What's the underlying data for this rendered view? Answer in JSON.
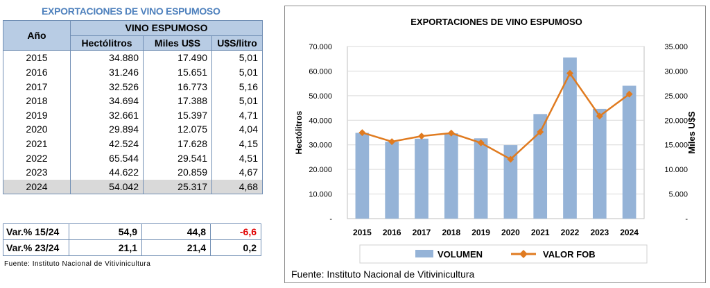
{
  "table": {
    "title": "EXPORTACIONES DE VINO ESPUMOSO",
    "header_year": "Año",
    "header_group": "VINO ESPUMOSO",
    "columns": [
      "Hectólitros",
      "Miles U$S",
      "U$S/litro"
    ],
    "rows": [
      {
        "year": "2015",
        "hl": "34.880",
        "mu": "17.490",
        "ul": "5,01"
      },
      {
        "year": "2016",
        "hl": "31.246",
        "mu": "15.651",
        "ul": "5,01"
      },
      {
        "year": "2017",
        "hl": "32.526",
        "mu": "16.773",
        "ul": "5,16"
      },
      {
        "year": "2018",
        "hl": "34.694",
        "mu": "17.388",
        "ul": "5,01"
      },
      {
        "year": "2019",
        "hl": "32.661",
        "mu": "15.397",
        "ul": "4,71"
      },
      {
        "year": "2020",
        "hl": "29.894",
        "mu": "12.075",
        "ul": "4,04"
      },
      {
        "year": "2021",
        "hl": "42.524",
        "mu": "17.628",
        "ul": "4,15"
      },
      {
        "year": "2022",
        "hl": "65.544",
        "mu": "29.541",
        "ul": "4,51"
      },
      {
        "year": "2023",
        "hl": "44.622",
        "mu": "20.859",
        "ul": "4,67"
      },
      {
        "year": "2024",
        "hl": "54.042",
        "mu": "25.317",
        "ul": "4,68"
      }
    ],
    "variations": [
      {
        "label": "Var.% 15/24",
        "hl": "54,9",
        "mu": "44,8",
        "ul": "-6,6"
      },
      {
        "label": "Var.% 23/24",
        "hl": "21,1",
        "mu": "21,4",
        "ul": "0,2"
      }
    ],
    "source": "Fuente: Instituto Nacional de Vitivinicultura",
    "negative_color": "#e00000"
  },
  "chart_data": {
    "type": "bar",
    "title": "EXPORTACIONES DE VINO ESPUMOSO",
    "categories": [
      "2015",
      "2016",
      "2017",
      "2018",
      "2019",
      "2020",
      "2021",
      "2022",
      "2023",
      "2024"
    ],
    "series": [
      {
        "name": "VOLUMEN",
        "kind": "bar",
        "axis": "left",
        "values": [
          34880,
          31246,
          32526,
          34694,
          32661,
          29894,
          42524,
          65544,
          44622,
          54042
        ],
        "color": "#95b3d7"
      },
      {
        "name": "VALOR FOB",
        "kind": "line",
        "axis": "right",
        "values": [
          17490,
          15651,
          16773,
          17388,
          15397,
          12075,
          17628,
          29541,
          20859,
          25317
        ],
        "color": "#e07b20"
      }
    ],
    "ylabel": "Hectólitros",
    "y2label": "Miles U$S",
    "ylim": [
      0,
      70000
    ],
    "y2lim": [
      0,
      35000
    ],
    "yticks": [
      "-",
      "10.000",
      "20.000",
      "30.000",
      "40.000",
      "50.000",
      "60.000",
      "70.000"
    ],
    "y2ticks": [
      "-",
      "5.000",
      "10.000",
      "15.000",
      "20.000",
      "25.000",
      "30.000",
      "35.000"
    ],
    "grid": true,
    "legend": "bottom",
    "source": "Fuente: Instituto Nacional de Vitivinicultura"
  }
}
